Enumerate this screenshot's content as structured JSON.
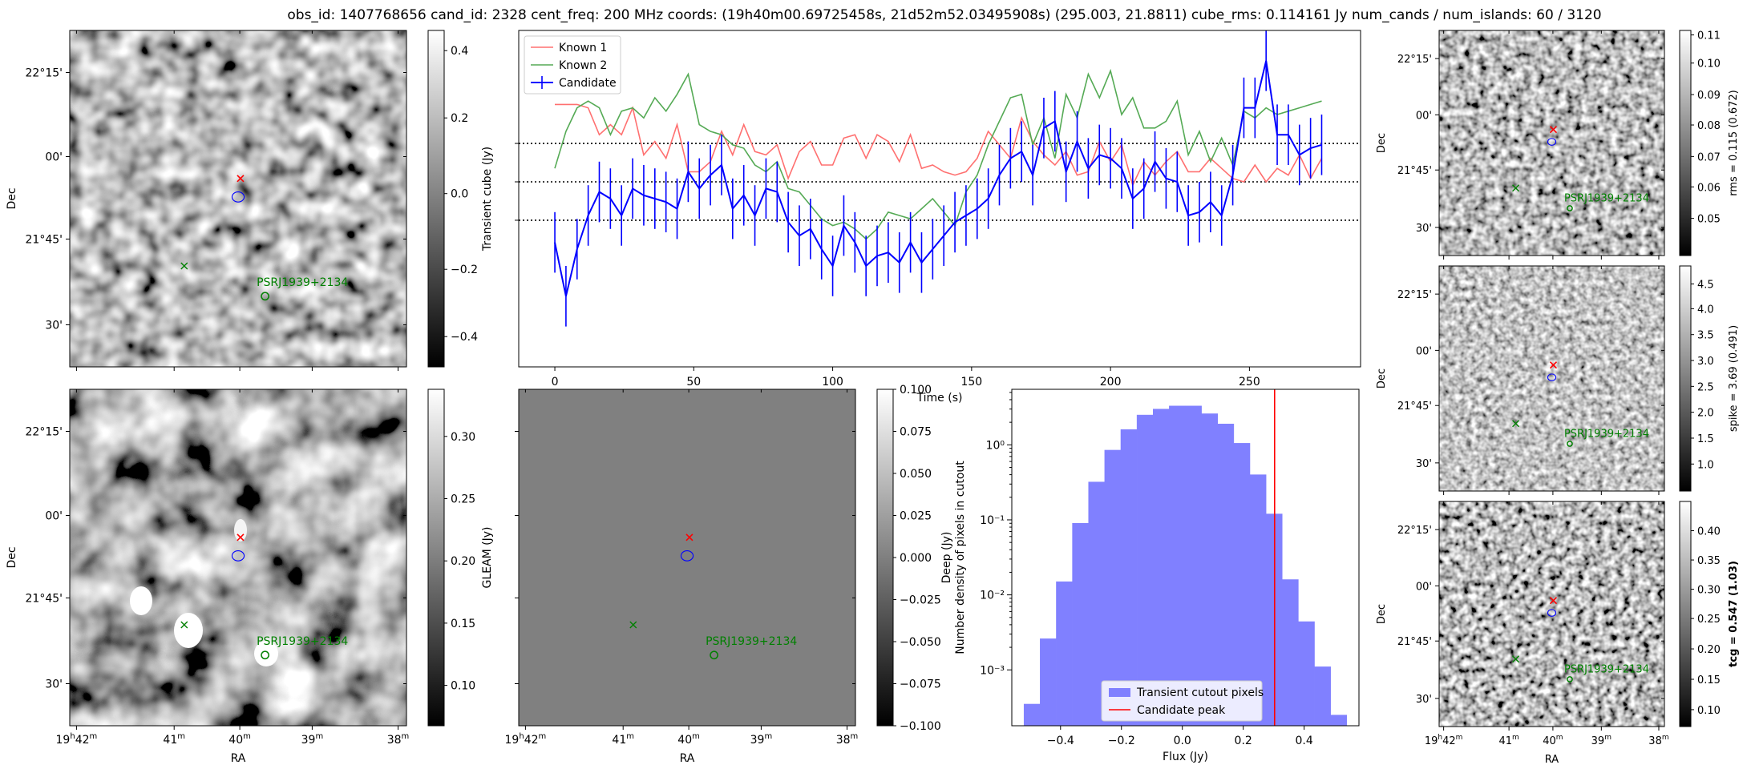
{
  "figure": {
    "title": "obs_id: 1407768656 cand_id: 2328 cent_freq: 200 MHz coords: (19h40m00.69725458s, 21d52m52.03495908s) (295.003, 21.8811) cube_rms: 0.114161 Jy num_cands / num_islands: 60 / 3120"
  },
  "sky_axes": {
    "ra_label": "RA",
    "dec_label": "Dec",
    "ra_ticks": [
      "19h42m",
      "41m",
      "40m",
      "39m",
      "38m"
    ],
    "dec_ticks": [
      "22°15'",
      "00'",
      "21°45'",
      "30'"
    ],
    "pulsar_label": "PSRJ1939+2134",
    "marker_colors": {
      "candidate": "#ff0000",
      "pulsar": "#008000",
      "contour": "#0000ff"
    }
  },
  "panels": {
    "transient_cube": {
      "colorbar_label": "Transient cube (Jy)",
      "ticks": [
        "0.4",
        "0.2",
        "0.0",
        "−0.2",
        "−0.4"
      ]
    },
    "gleam": {
      "colorbar_label": "GLEAM (Jy)",
      "ticks": [
        "0.30",
        "0.25",
        "0.20",
        "0.15",
        "0.10"
      ]
    },
    "deep": {
      "colorbar_label": "Deep (Jy)",
      "ticks": [
        "0.100",
        "0.075",
        "0.050",
        "0.025",
        "0.000",
        "−0.025",
        "−0.050",
        "−0.075",
        "−0.100"
      ]
    },
    "rms": {
      "colorbar_label": "rms = 0.115 (0.672)",
      "ticks": [
        "0.11",
        "0.10",
        "0.09",
        "0.08",
        "0.07",
        "0.06",
        "0.05"
      ]
    },
    "spike": {
      "colorbar_label": "spike = 3.69 (0.491)",
      "ticks": [
        "4.5",
        "4.0",
        "3.5",
        "3.0",
        "2.5",
        "2.0",
        "1.5",
        "1.0"
      ]
    },
    "tcg": {
      "colorbar_label": "tcg = 0.547 (1.03)",
      "ticks": [
        "0.40",
        "0.35",
        "0.30",
        "0.25",
        "0.20",
        "0.15",
        "0.10"
      ]
    }
  },
  "chart_data": [
    {
      "type": "line",
      "xlabel": "Time (s)",
      "xlim": [
        -13,
        290
      ],
      "xticks": [
        "0",
        "50",
        "100",
        "150",
        "200",
        "250"
      ],
      "legend": "top-left",
      "legend_entries": [
        "Known 1",
        "Known 2",
        "Candidate"
      ],
      "hlines": [
        "dotted",
        "dotted",
        "dotted"
      ],
      "series": [
        {
          "name": "Known 1",
          "color": "#ff7070",
          "x": [
            0,
            4,
            8,
            12,
            16,
            20,
            24,
            28,
            32,
            36,
            40,
            44,
            48,
            52,
            56,
            60,
            64,
            68,
            72,
            76,
            80,
            84,
            88,
            92,
            96,
            100,
            104,
            108,
            112,
            116,
            120,
            124,
            128,
            132,
            136,
            140,
            144,
            148,
            152,
            156,
            160,
            164,
            168,
            172,
            176,
            180,
            184,
            188,
            192,
            196,
            200,
            204,
            208,
            212,
            216,
            220,
            224,
            228,
            232,
            236,
            240,
            244,
            248,
            252,
            256,
            260,
            264,
            268,
            272,
            276
          ],
          "y": [
            0.23,
            0.23,
            0.23,
            0.22,
            0.14,
            0.17,
            0.14,
            0.22,
            0.08,
            0.12,
            0.07,
            0.17,
            0.03,
            0.03,
            0.06,
            0.15,
            0.08,
            0.17,
            0.09,
            0.08,
            0.11,
            0.01,
            0.09,
            0.12,
            0.05,
            0.05,
            0.13,
            0.14,
            0.07,
            0.14,
            0.12,
            0.06,
            0.14,
            0.04,
            0.05,
            0.03,
            0.02,
            0.03,
            0.07,
            0.15,
            0.11,
            0.07,
            0.19,
            0.12,
            0.08,
            0.05,
            0.09,
            0.02,
            0.03,
            0.12,
            0.06,
            0.11,
            -0.01,
            0.06,
            0.02,
            0.06,
            0.09,
            0.03,
            0.03,
            0.07,
            0.04,
            0.01,
            0.0,
            0.05,
            0.0,
            0.04,
            0.02,
            0.08,
            0.01,
            0.07
          ]
        },
        {
          "name": "Known 2",
          "color": "#55aa55",
          "x": [
            0,
            4,
            8,
            12,
            16,
            20,
            24,
            28,
            32,
            36,
            40,
            44,
            48,
            52,
            56,
            60,
            64,
            68,
            72,
            76,
            80,
            84,
            88,
            92,
            96,
            100,
            104,
            108,
            112,
            116,
            120,
            124,
            128,
            132,
            136,
            140,
            144,
            148,
            152,
            156,
            160,
            164,
            168,
            172,
            176,
            180,
            184,
            188,
            192,
            196,
            200,
            204,
            208,
            212,
            216,
            220,
            224,
            228,
            232,
            236,
            240,
            244,
            248,
            252,
            256,
            260,
            264,
            268,
            272,
            276
          ],
          "y": [
            0.04,
            0.15,
            0.22,
            0.24,
            0.22,
            0.14,
            0.21,
            0.22,
            0.19,
            0.25,
            0.21,
            0.26,
            0.32,
            0.17,
            0.15,
            0.14,
            0.11,
            0.1,
            0.05,
            0.03,
            0.06,
            -0.02,
            -0.03,
            -0.07,
            -0.11,
            -0.13,
            -0.12,
            -0.14,
            -0.17,
            -0.14,
            -0.09,
            -0.1,
            -0.11,
            -0.08,
            -0.05,
            -0.09,
            -0.13,
            -0.03,
            0.02,
            0.11,
            0.18,
            0.25,
            0.26,
            0.11,
            0.19,
            0.07,
            0.26,
            0.19,
            0.32,
            0.25,
            0.33,
            0.2,
            0.25,
            0.16,
            0.16,
            0.18,
            0.24,
            0.08,
            0.15,
            0.06,
            0.13,
            0.05,
            0.21,
            0.19,
            0.22,
            0.2,
            0.21,
            0.22,
            0.23,
            0.24
          ]
        },
        {
          "name": "Candidate",
          "color": "#0000ff",
          "error": 0.09,
          "x": [
            0,
            4,
            8,
            12,
            16,
            20,
            24,
            28,
            32,
            36,
            40,
            44,
            48,
            52,
            56,
            60,
            64,
            68,
            72,
            76,
            80,
            84,
            88,
            92,
            96,
            100,
            104,
            108,
            112,
            116,
            120,
            124,
            128,
            132,
            136,
            140,
            144,
            148,
            152,
            156,
            160,
            164,
            168,
            172,
            176,
            180,
            184,
            188,
            192,
            196,
            200,
            204,
            208,
            212,
            216,
            220,
            224,
            228,
            232,
            236,
            240,
            244,
            248,
            252,
            256,
            260,
            264,
            268,
            272,
            276
          ],
          "y": [
            -0.18,
            -0.34,
            -0.2,
            -0.1,
            -0.03,
            -0.05,
            -0.1,
            -0.02,
            -0.04,
            -0.05,
            -0.06,
            -0.08,
            0.03,
            -0.02,
            0.02,
            0.05,
            -0.08,
            -0.04,
            -0.1,
            -0.02,
            -0.03,
            -0.12,
            -0.16,
            -0.14,
            -0.2,
            -0.25,
            -0.13,
            -0.18,
            -0.25,
            -0.22,
            -0.21,
            -0.24,
            -0.18,
            -0.24,
            -0.2,
            -0.16,
            -0.12,
            -0.1,
            -0.08,
            -0.05,
            0.02,
            0.07,
            0.09,
            0.02,
            0.16,
            0.18,
            0.03,
            0.12,
            0.04,
            0.08,
            0.07,
            0.04,
            -0.05,
            -0.02,
            0.06,
            0.01,
            0.0,
            -0.1,
            -0.09,
            -0.06,
            -0.1,
            0.02,
            0.22,
            0.22,
            0.36,
            0.14,
            0.14,
            0.08,
            0.1,
            0.11
          ]
        }
      ]
    },
    {
      "type": "bar",
      "title": "",
      "xlabel": "Flux (Jy)",
      "ylabel": "Number density of pixels in cutout",
      "xticks": [
        "−0.4",
        "−0.2",
        "0.0",
        "0.2",
        "0.4"
      ],
      "yticks": [
        "10⁰",
        "10⁻¹",
        "10⁻²",
        "10⁻³"
      ],
      "yscale": "log",
      "xlim": [
        -0.56,
        0.58
      ],
      "ylim": [
        0.00018,
        5.5
      ],
      "legend": "bottom-right",
      "legend_entries": [
        "Transient cutout pixels",
        "Candidate peak"
      ],
      "bin_edges": [
        -0.52,
        -0.467,
        -0.414,
        -0.361,
        -0.308,
        -0.255,
        -0.202,
        -0.149,
        -0.096,
        -0.043,
        0.01,
        0.063,
        0.116,
        0.169,
        0.222,
        0.275,
        0.328,
        0.381,
        0.434,
        0.487,
        0.54
      ],
      "values": [
        0.00035,
        0.0026,
        0.015,
        0.09,
        0.32,
        0.85,
        1.6,
        2.5,
        3.0,
        3.3,
        3.3,
        2.6,
        1.9,
        1.05,
        0.4,
        0.12,
        0.016,
        0.0044,
        0.0011,
        0.00025
      ],
      "candidate_peak": 0.303
    }
  ]
}
